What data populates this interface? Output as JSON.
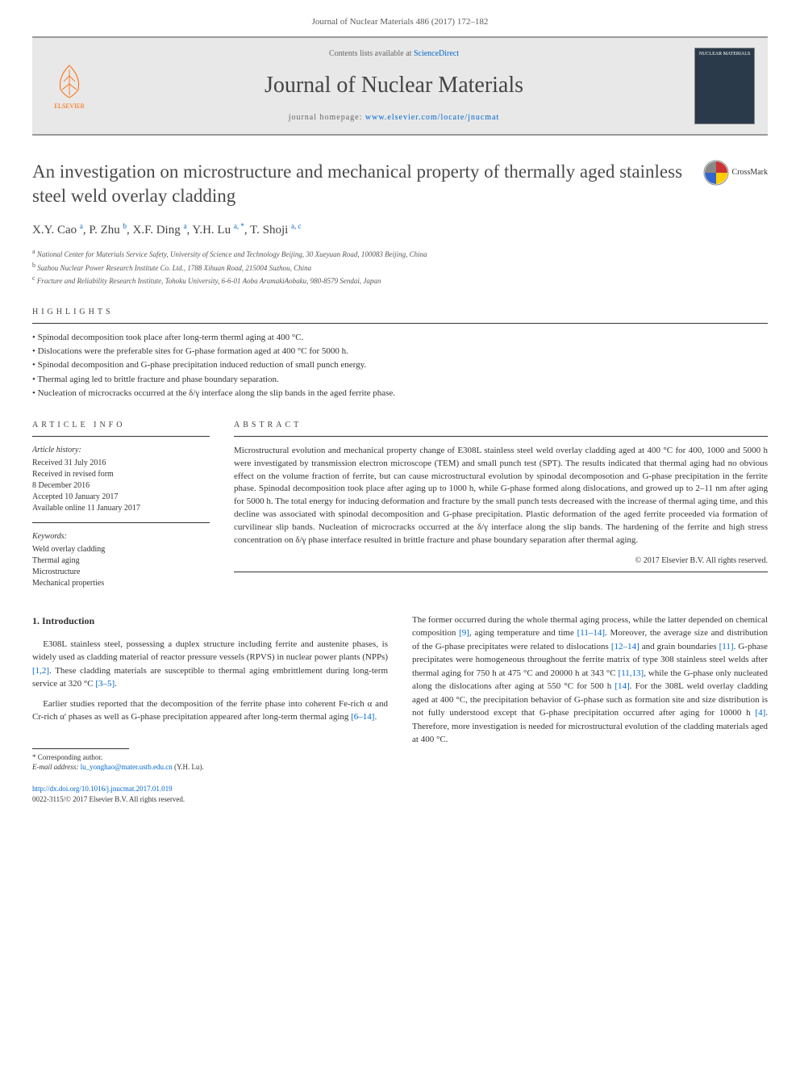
{
  "header": {
    "citation": "Journal of Nuclear Materials 486 (2017) 172–182",
    "contents_prefix": "Contents lists available at ",
    "contents_link": "ScienceDirect",
    "journal_name": "Journal of Nuclear Materials",
    "homepage_prefix": "journal homepage: ",
    "homepage_url": "www.elsevier.com/locate/jnucmat",
    "publisher_label": "ELSEVIER",
    "cover_title": "NUCLEAR MATERIALS",
    "crossmark_label": "CrossMark"
  },
  "article": {
    "title": "An investigation on microstructure and mechanical property of thermally aged stainless steel weld overlay cladding",
    "authors_html": "X.Y. Cao <sup>a</sup>, P. Zhu <sup>b</sup>, X.F. Ding <sup>a</sup>, Y.H. Lu <sup>a, *</sup>, T. Shoji <sup>a, c</sup>",
    "affiliations": [
      "a National Center for Materials Service Safety, University of Science and Technology Beijing, 30 Xueyuan Road, 100083 Beijing, China",
      "b Suzhou Nuclear Power Research Institute Co. Ltd., 1788 Xihuan Road, 215004 Suzhou, China",
      "c Fracture and Reliability Research Institute, Tohoku University, 6-6-01 Aoba AramakiAobaku, 980-8579 Sendai, Japan"
    ]
  },
  "highlights": {
    "heading": "HIGHLIGHTS",
    "items": [
      "Spinodal decomposition took place after long-term therml aging at 400 °C.",
      "Dislocations were the preferable sites for G-phase formation aged at 400 °C for 5000 h.",
      "Spinodal decomposition and G-phase precipitation induced reduction of small punch energy.",
      "Thermal aging led to brittle fracture and phase boundary separation.",
      "Nucleation of microcracks occurred at the δ/γ interface along the slip bands in the aged ferrite phase."
    ]
  },
  "article_info": {
    "heading": "ARTICLE INFO",
    "history_label": "Article history:",
    "history": [
      "Received 31 July 2016",
      "Received in revised form",
      "8 December 2016",
      "Accepted 10 January 2017",
      "Available online 11 January 2017"
    ],
    "keywords_label": "Keywords:",
    "keywords": [
      "Weld overlay cladding",
      "Thermal aging",
      "Microstructure",
      "Mechanical properties"
    ]
  },
  "abstract": {
    "heading": "ABSTRACT",
    "text": "Microstructural evolution and mechanical property change of E308L stainless steel weld overlay cladding aged at 400 °C for 400, 1000 and 5000 h were investigated by transmission electron microscope (TEM) and small punch test (SPT). The results indicated that thermal aging had no obvious effect on the volume fraction of ferrite, but can cause microstructural evolution by spinodal decomposotion and G-phase precipitation in the ferrite phase. Spinodal decomposition took place after aging up to 1000 h, while G-phase formed along dislocations, and growed up to 2–11 nm after aging for 5000 h. The total energy for inducing deformation and fracture by the small punch tests decreased with the increase of thermal aging time, and this decline was associated with spinodal decomposition and G-phase precipitation. Plastic deformation of the aged ferrite proceeded via formation of curvilinear slip bands. Nucleation of microcracks occurred at the δ/γ interface along the slip bands. The hardening of the ferrite and high stress concentration on δ/γ phase interface resulted in brittle fracture and phase boundary separation after thermal aging.",
    "copyright": "© 2017 Elsevier B.V. All rights reserved."
  },
  "body": {
    "section_number": "1.",
    "section_title": "Introduction",
    "col1_p1": "E308L stainless steel, possessing a duplex structure including ferrite and austenite phases, is widely used as cladding material of reactor pressure vessels (RPVS) in nuclear power plants (NPPs) [1,2]. These cladding materials are susceptible to thermal aging embrittlement during long-term service at 320 °C [3–5].",
    "col1_p2": "Earlier studies reported that the decomposition of the ferrite phase into coherent Fe-rich α and Cr-rich α' phases as well as G-phase precipitation appeared after long-term thermal aging [6–14].",
    "col2_p1": "The former occurred during the whole thermal aging process, while the latter depended on chemical composition [9], aging temperature and time [11–14]. Moreover, the average size and distribution of the G-phase precipitates were related to dislocations [12–14] and grain boundaries [11]. G-phase precipitates were homogeneous throughout the ferrite matrix of type 308 stainless steel welds after thermal aging for 750 h at 475 °C and 20000 h at 343 °C [11,13], while the G-phase only nucleated along the dislocations after aging at 550 °C for 500 h [14]. For the 308L weld overlay cladding aged at 400 °C, the precipitation behavior of G-phase such as formation site and size distribution is not fully understood except that G-phase precipitation occurred after aging for 10000 h [4]. Therefore, more investigation is needed for microstructural evolution of the cladding materials aged at 400 °C."
  },
  "footer": {
    "corresponding": "* Corresponding author.",
    "email_label": "E-mail address: ",
    "email": "lu_yonghao@mater.ustb.edu.cn",
    "email_suffix": " (Y.H. Lu).",
    "doi_url": "http://dx.doi.org/10.1016/j.jnucmat.2017.01.019",
    "issn_line": "0022-3115/© 2017 Elsevier B.V. All rights reserved."
  },
  "colors": {
    "link": "#0066cc",
    "elsevier_orange": "#ff6600",
    "text_gray": "#4a4a4a",
    "rule": "#333333"
  }
}
